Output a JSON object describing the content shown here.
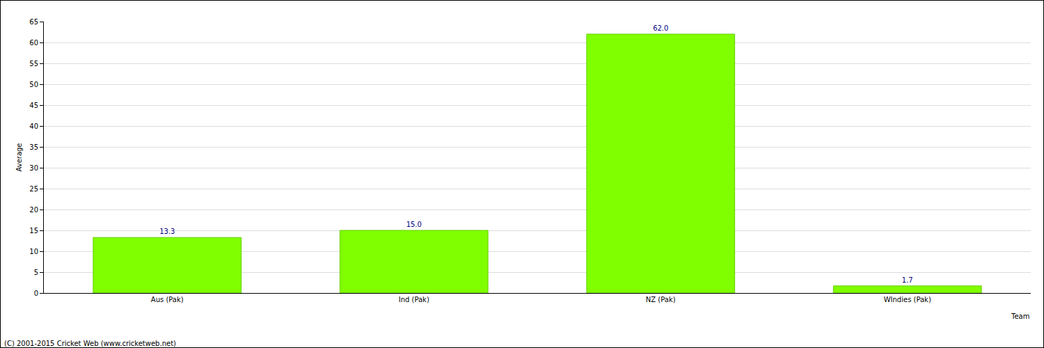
{
  "chart_data": {
    "type": "bar",
    "categories": [
      "Aus (Pak)",
      "Ind (Pak)",
      "NZ (Pak)",
      "WIndies (Pak)"
    ],
    "values": [
      13.3,
      15.0,
      62.0,
      1.7
    ],
    "value_labels": [
      "13.3",
      "15.0",
      "62.0",
      "1.7"
    ],
    "data_labels": true,
    "color": "#80ff00",
    "xlabel": "Team",
    "ylabel": "Average",
    "ylim": [
      0,
      65
    ],
    "yticks": [
      0,
      5,
      10,
      15,
      20,
      25,
      30,
      35,
      40,
      45,
      50,
      55,
      60,
      65
    ],
    "grid": true,
    "annotations": [
      "(C) 2001-2015 Cricket Web (www.cricketweb.net)"
    ]
  }
}
